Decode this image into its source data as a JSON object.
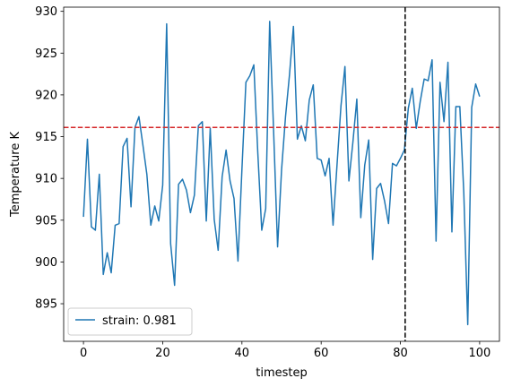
{
  "chart_data": {
    "type": "line",
    "xlabel": "timestep",
    "ylabel": "Temperature K",
    "xlim": [
      -5,
      105
    ],
    "ylim": [
      890.5,
      930.5
    ],
    "xticks": [
      0,
      20,
      40,
      60,
      80,
      100
    ],
    "yticks": [
      895,
      900,
      905,
      910,
      915,
      920,
      925,
      930
    ],
    "grid": false,
    "legend_position": "lower-left",
    "series": [
      {
        "name": "strain: 0.981",
        "color": "#1f77b4",
        "x": [
          0,
          1,
          2,
          3,
          4,
          5,
          6,
          7,
          8,
          9,
          10,
          11,
          12,
          13,
          14,
          15,
          16,
          17,
          18,
          19,
          20,
          21,
          22,
          23,
          24,
          25,
          26,
          27,
          28,
          29,
          30,
          31,
          32,
          33,
          34,
          35,
          36,
          37,
          38,
          39,
          40,
          41,
          42,
          43,
          44,
          45,
          46,
          47,
          48,
          49,
          50,
          51,
          52,
          53,
          54,
          55,
          56,
          57,
          58,
          59,
          60,
          61,
          62,
          63,
          64,
          65,
          66,
          67,
          68,
          69,
          70,
          71,
          72,
          73,
          74,
          75,
          76,
          77,
          78,
          79,
          80,
          81,
          82,
          83,
          84,
          85,
          86,
          87,
          88,
          89,
          90,
          91,
          92,
          93,
          94,
          95,
          96,
          97,
          98,
          99,
          100
        ],
        "y": [
          905.4,
          914.7,
          904.2,
          903.8,
          910.5,
          898.5,
          901.1,
          898.7,
          904.4,
          904.6,
          913.8,
          914.8,
          906.6,
          916.1,
          917.4,
          914.0,
          910.5,
          904.4,
          906.7,
          904.9,
          909.2,
          928.5,
          902.2,
          897.2,
          909.3,
          909.9,
          908.6,
          905.9,
          908.0,
          916.3,
          916.8,
          904.9,
          916.0,
          905.1,
          901.4,
          910.2,
          913.4,
          909.7,
          907.6,
          900.1,
          911.1,
          921.5,
          922.3,
          923.6,
          913.1,
          903.8,
          906.4,
          928.8,
          915.6,
          901.8,
          911.0,
          917.4,
          922.4,
          928.2,
          914.7,
          916.3,
          914.5,
          919.4,
          921.2,
          912.4,
          912.2,
          910.3,
          912.4,
          904.4,
          911.6,
          918.7,
          923.4,
          909.7,
          914.3,
          919.5,
          905.3,
          911.6,
          914.6,
          900.3,
          908.8,
          909.4,
          907.3,
          904.6,
          911.8,
          911.5,
          912.4,
          913.4,
          918.4,
          920.8,
          916.0,
          919.2,
          921.9,
          921.7,
          924.2,
          902.5,
          921.5,
          916.8,
          923.9,
          903.6,
          918.6,
          918.6,
          908.3,
          892.5,
          918.5,
          921.3,
          919.8
        ]
      }
    ],
    "reference_lines": [
      {
        "orientation": "horizontal",
        "value": 916.1,
        "color": "#d62728",
        "style": "dashed"
      },
      {
        "orientation": "vertical",
        "value": 81.2,
        "color": "#000000",
        "style": "dashed"
      }
    ]
  }
}
